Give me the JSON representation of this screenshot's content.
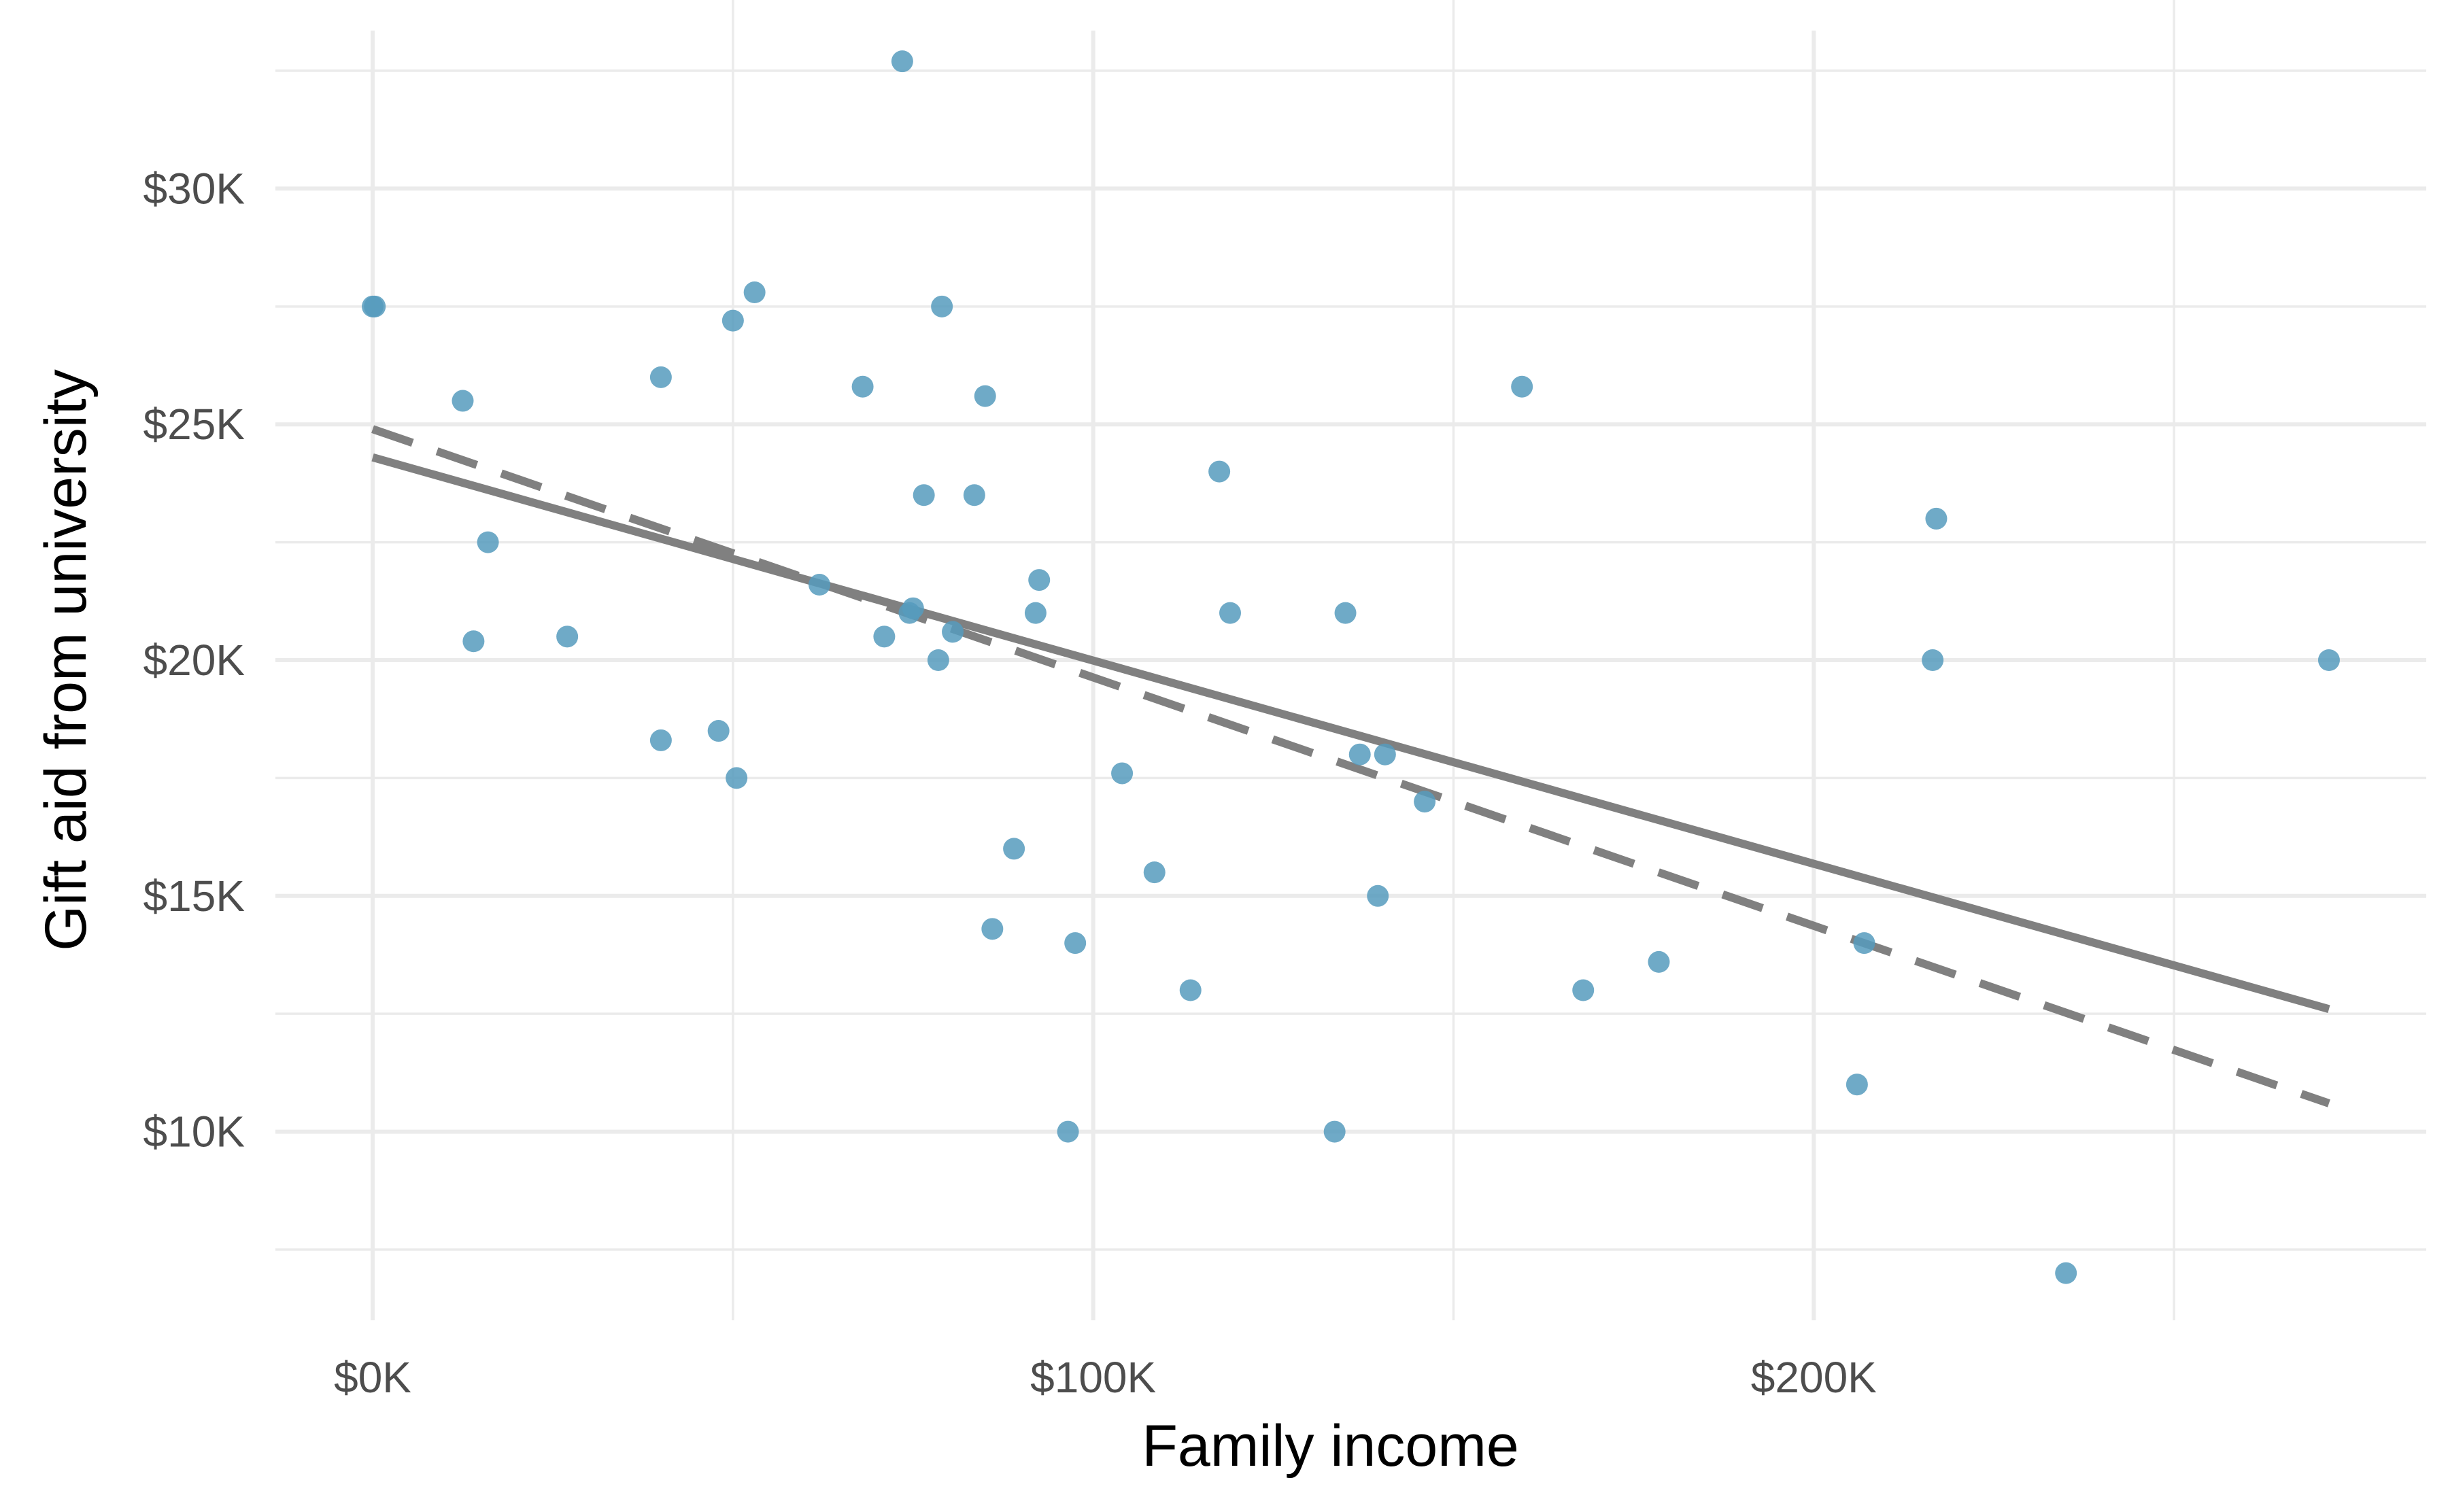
{
  "chart_data": {
    "type": "scatter",
    "title": "",
    "xlabel": "Family income",
    "ylabel": "Gift aid from university",
    "xlim": [
      -13.5,
      285
    ],
    "ylim": [
      6,
      34
    ],
    "x_major_ticks": [
      0,
      100,
      200
    ],
    "x_minor_ticks": [
      50,
      150,
      250
    ],
    "x_tick_labels": [
      "$0K",
      "$100K",
      "$200K"
    ],
    "y_major_ticks": [
      10,
      15,
      20,
      25,
      30
    ],
    "y_minor_ticks": [
      7.5,
      12.5,
      17.5,
      22.5,
      27.5,
      32.5
    ],
    "y_tick_labels": [
      "$10K",
      "$15K",
      "$20K",
      "$25K",
      "$30K"
    ],
    "grid": true,
    "legend": "none",
    "colors": {
      "points": "#569bbd",
      "lines": "#808080",
      "grid": "#ebebeb",
      "tick_text": "#4d4d4d"
    },
    "x_units": "thousands of dollars",
    "y_units": "thousands of dollars",
    "series": [
      {
        "type": "points",
        "x": [
          0,
          0.3,
          12.5,
          14,
          16,
          27,
          40,
          40,
          48,
          50,
          50.5,
          53,
          62,
          68,
          71,
          73.5,
          74.5,
          75,
          76.5,
          78.5,
          79,
          80.5,
          83.5,
          85,
          86,
          89,
          92,
          92.5,
          96.5,
          97.5,
          104,
          108.5,
          113.5,
          117.5,
          119,
          133.5,
          135,
          137,
          139.5,
          140.5,
          146,
          159.5,
          168,
          178.5,
          206,
          207,
          216.5,
          217,
          235,
          271.5
        ],
        "y": [
          27.5,
          27.5,
          25.5,
          20.4,
          22.5,
          20.5,
          26,
          18.3,
          18.5,
          27.2,
          17.5,
          27.8,
          21.6,
          25.8,
          20.5,
          32.7,
          21,
          21.1,
          23.5,
          20,
          27.5,
          20.6,
          23.5,
          25.6,
          14.3,
          16,
          21,
          21.7,
          10,
          14,
          17.6,
          15.5,
          13,
          24,
          21,
          10,
          21,
          18,
          15,
          18,
          17,
          25.8,
          13,
          13.6,
          11,
          14,
          20,
          23,
          7,
          20
        ]
      },
      {
        "type": "line",
        "style": "solid",
        "x": [
          0,
          271.5
        ],
        "y": [
          24.3,
          12.6
        ]
      },
      {
        "type": "line",
        "style": "dashed",
        "x": [
          0,
          271.5
        ],
        "y": [
          24.9,
          10.6
        ]
      }
    ]
  }
}
